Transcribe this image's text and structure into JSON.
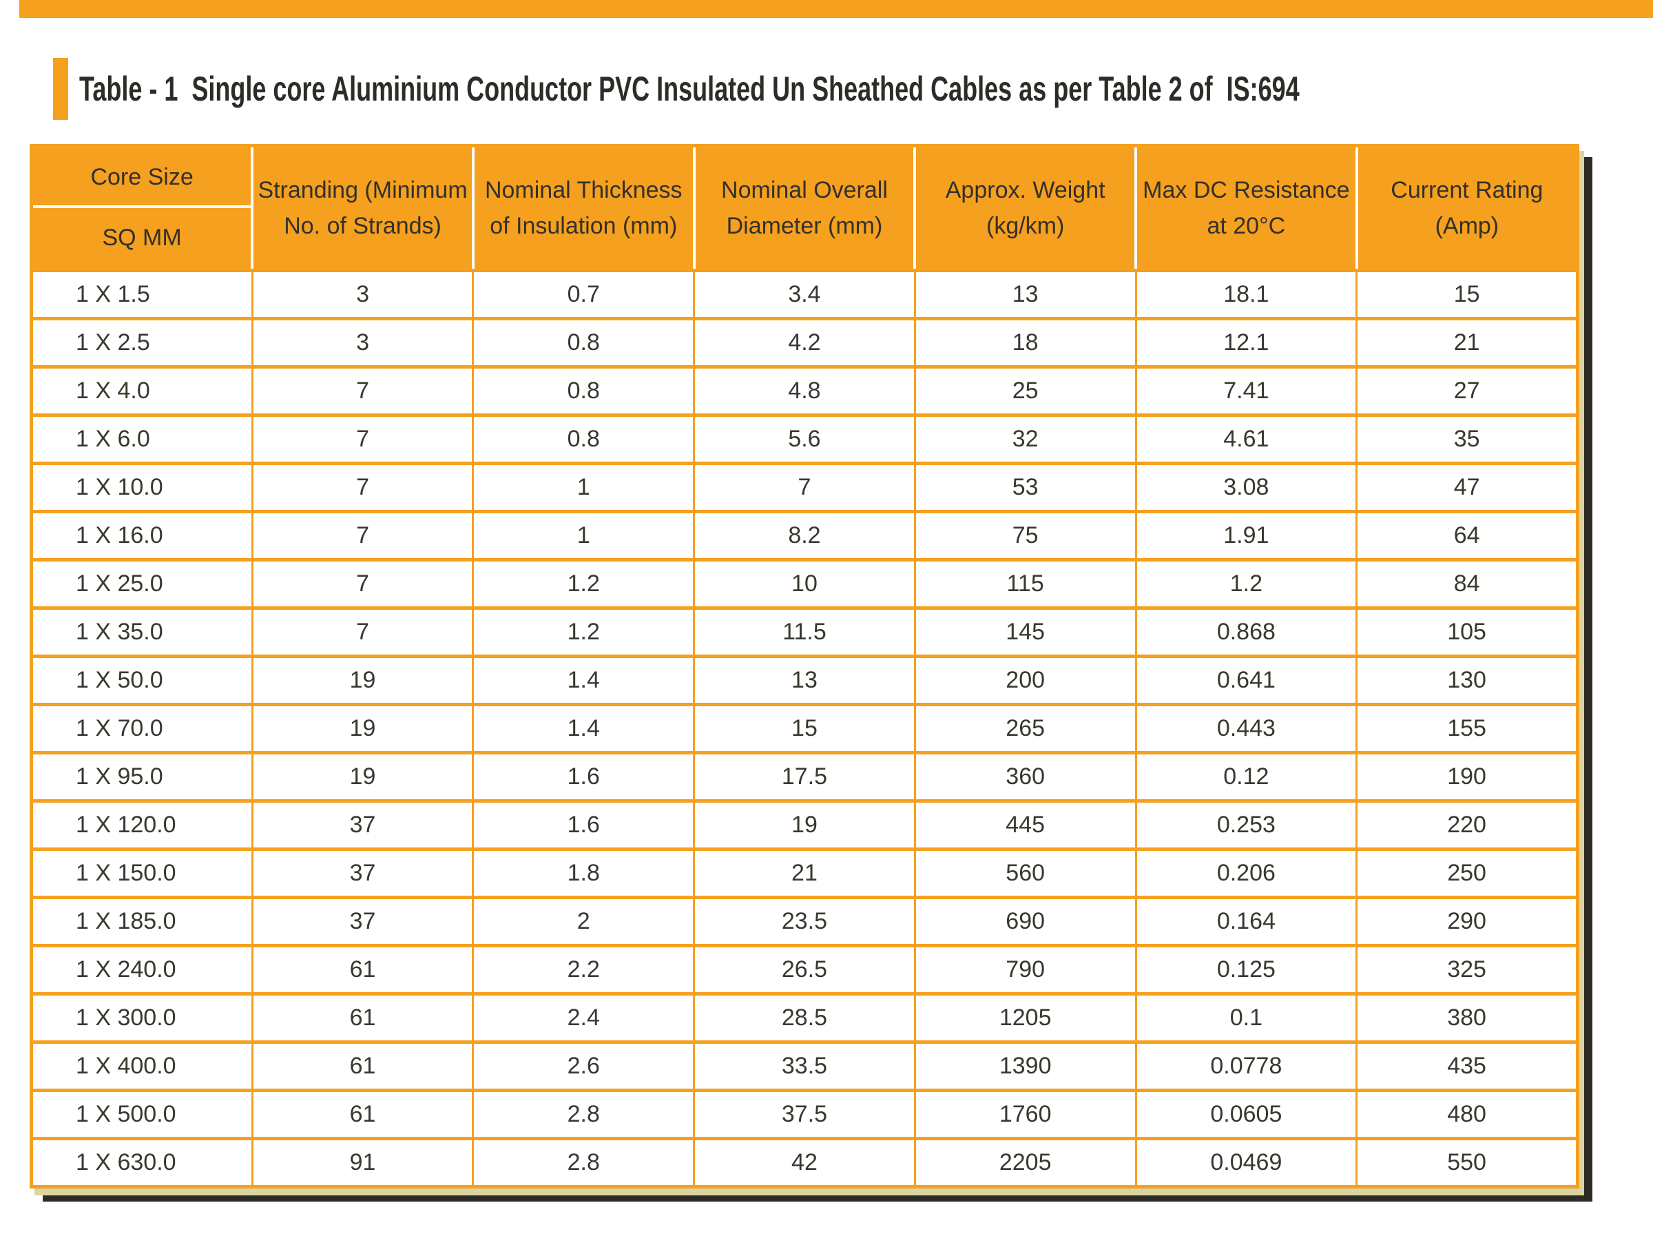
{
  "top_band": {
    "color": "#F5A01E"
  },
  "title": {
    "text": "Table - 1  Single core Aluminium Conductor PVC Insulated Un Sheathed Cables as per Table 2 of  IS:694"
  },
  "table": {
    "header": {
      "core_size": {
        "top": "Core Size",
        "bottom": "SQ MM"
      },
      "columns": [
        {
          "line1": "Stranding (Minimum",
          "line2": "No. of Strands)"
        },
        {
          "line1": "Nominal Thickness",
          "line2": "of Insulation (mm)"
        },
        {
          "line1": "Nominal Overall",
          "line2": "Diameter (mm)"
        },
        {
          "line1": "Approx. Weight",
          "line2": "(kg/km)"
        },
        {
          "line1": "Max DC Resistance",
          "line2": "at 20°C"
        },
        {
          "line1": "Current Rating",
          "line2": "(Amp)"
        }
      ]
    },
    "rows": [
      [
        "1 X 1.5",
        "3",
        "0.7",
        "3.4",
        "13",
        "18.1",
        "15"
      ],
      [
        "1 X 2.5",
        "3",
        "0.8",
        "4.2",
        "18",
        "12.1",
        "21"
      ],
      [
        "1 X 4.0",
        "7",
        "0.8",
        "4.8",
        "25",
        "7.41",
        "27"
      ],
      [
        "1 X 6.0",
        "7",
        "0.8",
        "5.6",
        "32",
        "4.61",
        "35"
      ],
      [
        "1 X 10.0",
        "7",
        "1",
        "7",
        "53",
        "3.08",
        "47"
      ],
      [
        "1 X 16.0",
        "7",
        "1",
        "8.2",
        "75",
        "1.91",
        "64"
      ],
      [
        "1 X 25.0",
        "7",
        "1.2",
        "10",
        "115",
        "1.2",
        "84"
      ],
      [
        "1 X 35.0",
        "7",
        "1.2",
        "11.5",
        "145",
        "0.868",
        "105"
      ],
      [
        "1 X 50.0",
        "19",
        "1.4",
        "13",
        "200",
        "0.641",
        "130"
      ],
      [
        "1 X 70.0",
        "19",
        "1.4",
        "15",
        "265",
        "0.443",
        "155"
      ],
      [
        "1 X 95.0",
        "19",
        "1.6",
        "17.5",
        "360",
        "0.12",
        "190"
      ],
      [
        "1 X 120.0",
        "37",
        "1.6",
        "19",
        "445",
        "0.253",
        "220"
      ],
      [
        "1 X 150.0",
        "37",
        "1.8",
        "21",
        "560",
        "0.206",
        "250"
      ],
      [
        "1 X 185.0",
        "37",
        "2",
        "23.5",
        "690",
        "0.164",
        "290"
      ],
      [
        "1 X 240.0",
        "61",
        "2.2",
        "26.5",
        "790",
        "0.125",
        "325"
      ],
      [
        "1 X 300.0",
        "61",
        "2.4",
        "28.5",
        "1205",
        "0.1",
        "380"
      ],
      [
        "1 X 400.0",
        "61",
        "2.6",
        "33.5",
        "1390",
        "0.0778",
        "435"
      ],
      [
        "1 X 500.0",
        "61",
        "2.8",
        "37.5",
        "1760",
        "0.0605",
        "480"
      ],
      [
        "1 X 630.0",
        "91",
        "2.8",
        "42",
        "2205",
        "0.0469",
        "550"
      ]
    ]
  },
  "colors": {
    "orange": "#F5A01E",
    "title_text": "#2e2c27",
    "header_text": "#33302a",
    "body_text": "#3a372f",
    "shadow_tan": "#dbd4a4",
    "shadow_dark": "#2e2b22"
  }
}
